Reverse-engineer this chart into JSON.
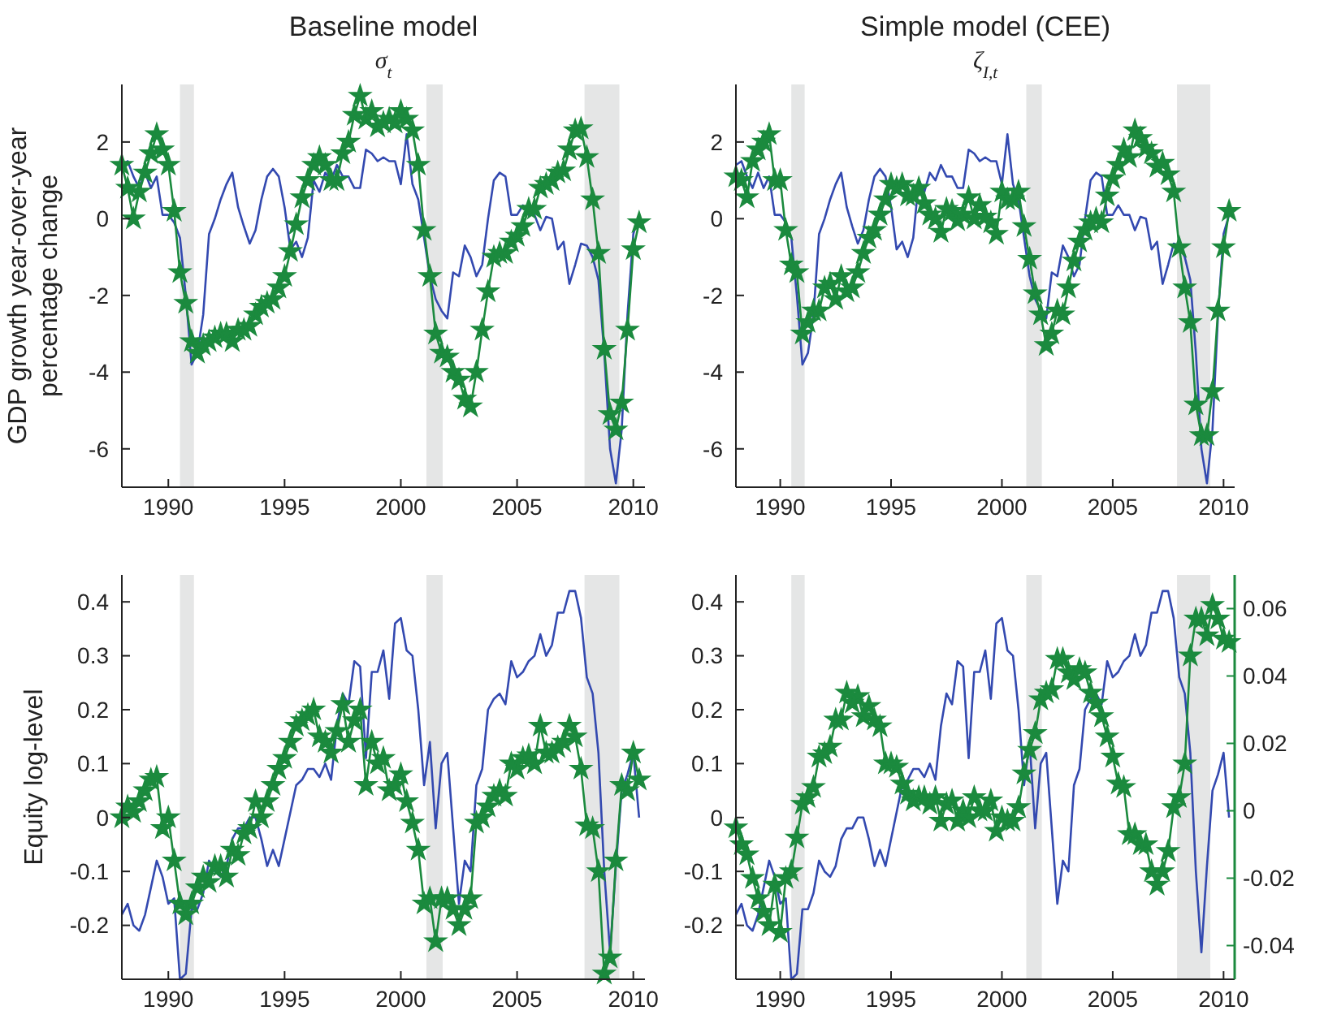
{
  "chart_data": [
    {
      "type": "line",
      "title": "Baseline model",
      "subtitle": "σ$_{t}$",
      "ylabel": "GDP growth year-over-year percentage change",
      "x": [
        1988,
        1988.25,
        1988.5,
        1988.75,
        1989,
        1989.25,
        1989.5,
        1989.75,
        1990,
        1990.25,
        1990.5,
        1990.75,
        1991,
        1991.25,
        1991.5,
        1991.75,
        1992,
        1992.25,
        1992.5,
        1992.75,
        1993,
        1993.25,
        1993.5,
        1993.75,
        1994,
        1994.25,
        1994.5,
        1994.75,
        1995,
        1995.25,
        1995.5,
        1995.75,
        1996,
        1996.25,
        1996.5,
        1996.75,
        1997,
        1997.25,
        1997.5,
        1997.75,
        1998,
        1998.25,
        1998.5,
        1998.75,
        1999,
        1999.25,
        1999.5,
        1999.75,
        2000,
        2000.25,
        2000.5,
        2000.75,
        2001,
        2001.25,
        2001.5,
        2001.75,
        2002,
        2002.25,
        2002.5,
        2002.75,
        2003,
        2003.25,
        2003.5,
        2003.75,
        2004,
        2004.25,
        2004.5,
        2004.75,
        2005,
        2005.25,
        2005.5,
        2005.75,
        2006,
        2006.25,
        2006.5,
        2006.75,
        2007,
        2007.25,
        2007.5,
        2007.75,
        2008,
        2008.25,
        2008.5,
        2008.75,
        2009,
        2009.25,
        2009.5,
        2009.75,
        2010,
        2010.25
      ],
      "series": [
        {
          "color": "#3349b0",
          "marker": "none",
          "values": [
            1.4,
            1.5,
            1.1,
            0.8,
            1.2,
            0.8,
            1.1,
            0.1,
            0.1,
            -0.1,
            -0.5,
            -2.0,
            -3.8,
            -3.5,
            -2.5,
            -0.4,
            0.0,
            0.5,
            0.9,
            1.2,
            0.3,
            -0.2,
            -0.65,
            -0.3,
            0.5,
            1.1,
            1.3,
            1.1,
            0.3,
            -0.8,
            -0.6,
            -1.0,
            -0.5,
            1.0,
            0.7,
            1.2,
            1.0,
            1.4,
            1.1,
            1.1,
            0.8,
            0.8,
            1.8,
            1.7,
            1.5,
            1.6,
            1.5,
            1.5,
            0.9,
            2.2,
            0.9,
            0.5,
            -0.5,
            -1.5,
            -2.1,
            -2.4,
            -2.6,
            -1.4,
            -1.5,
            -0.7,
            -1.0,
            -1.5,
            -1.2,
            0.0,
            1.0,
            1.2,
            1.1,
            0.1,
            0.1,
            0.35,
            0.1,
            0.1,
            -0.3,
            0.05,
            0.0,
            -0.8,
            -0.6,
            -1.7,
            -1.2,
            -0.65,
            -0.7,
            -1.0,
            -1.6,
            -3.5,
            -6.0,
            -6.9,
            -5.5,
            -2.5,
            -0.4,
            0.1
          ]
        },
        {
          "color": "#1b8a3e",
          "marker": "star",
          "values": [
            1.4,
            0.8,
            0.0,
            0.7,
            1.2,
            1.7,
            2.2,
            1.8,
            1.4,
            0.2,
            -1.4,
            -2.2,
            -3.2,
            -3.5,
            -3.3,
            -3.2,
            -3.1,
            -3.0,
            -3.0,
            -3.2,
            -2.9,
            -2.9,
            -2.8,
            -2.5,
            -2.3,
            -2.2,
            -2.1,
            -1.8,
            -1.5,
            -0.85,
            -0.15,
            0.55,
            1.0,
            1.4,
            1.6,
            1.4,
            1.0,
            1.0,
            1.7,
            2.0,
            2.7,
            3.2,
            2.6,
            2.8,
            2.4,
            2.5,
            2.6,
            2.5,
            2.8,
            2.6,
            2.3,
            1.4,
            -0.3,
            -1.5,
            -3.0,
            -3.5,
            -3.6,
            -4.0,
            -4.2,
            -4.7,
            -4.9,
            -4.0,
            -2.9,
            -1.9,
            -1.0,
            -0.9,
            -0.9,
            -0.6,
            -0.45,
            -0.2,
            0.25,
            0.25,
            0.8,
            0.9,
            1.0,
            1.2,
            1.25,
            1.8,
            2.3,
            2.35,
            1.6,
            0.5,
            -0.9,
            -3.4,
            -5.1,
            -5.5,
            -4.8,
            -2.9,
            -0.8,
            -0.1
          ]
        }
      ],
      "bands": [
        {
          "axis": "x",
          "from": 1990.5,
          "to": 1991.1,
          "color": "#e5e6e6"
        },
        {
          "axis": "x",
          "from": 2001.1,
          "to": 2001.8,
          "color": "#e5e6e6"
        },
        {
          "axis": "x",
          "from": 2007.9,
          "to": 2009.4,
          "color": "#e5e6e6"
        }
      ],
      "xlim": [
        1988,
        2010.5
      ],
      "xticks": [
        1990,
        1995,
        2000,
        2005,
        2010
      ],
      "ylim": [
        -7,
        3.5
      ],
      "yticks": [
        -6,
        -4,
        -2,
        0,
        2
      ],
      "grid": false,
      "line_style": "solid"
    },
    {
      "type": "line",
      "title": "Simple model (CEE)",
      "subtitle": "ζ$_{I,t}$",
      "x": [
        1988,
        1988.25,
        1988.5,
        1988.75,
        1989,
        1989.25,
        1989.5,
        1989.75,
        1990,
        1990.25,
        1990.5,
        1990.75,
        1991,
        1991.25,
        1991.5,
        1991.75,
        1992,
        1992.25,
        1992.5,
        1992.75,
        1993,
        1993.25,
        1993.5,
        1993.75,
        1994,
        1994.25,
        1994.5,
        1994.75,
        1995,
        1995.25,
        1995.5,
        1995.75,
        1996,
        1996.25,
        1996.5,
        1996.75,
        1997,
        1997.25,
        1997.5,
        1997.75,
        1998,
        1998.25,
        1998.5,
        1998.75,
        1999,
        1999.25,
        1999.5,
        1999.75,
        2000,
        2000.25,
        2000.5,
        2000.75,
        2001,
        2001.25,
        2001.5,
        2001.75,
        2002,
        2002.25,
        2002.5,
        2002.75,
        2003,
        2003.25,
        2003.5,
        2003.75,
        2004,
        2004.25,
        2004.5,
        2004.75,
        2005,
        2005.25,
        2005.5,
        2005.75,
        2006,
        2006.25,
        2006.5,
        2006.75,
        2007,
        2007.25,
        2007.5,
        2007.75,
        2008,
        2008.25,
        2008.5,
        2008.75,
        2009,
        2009.25,
        2009.5,
        2009.75,
        2010,
        2010.25
      ],
      "series": [
        {
          "color": "#3349b0",
          "marker": "none",
          "values": [
            1.4,
            1.5,
            1.1,
            0.8,
            1.2,
            0.8,
            1.1,
            0.1,
            0.1,
            -0.1,
            -0.5,
            -2.0,
            -3.8,
            -3.5,
            -2.5,
            -0.4,
            0.0,
            0.5,
            0.9,
            1.2,
            0.3,
            -0.2,
            -0.65,
            -0.3,
            0.5,
            1.1,
            1.3,
            1.1,
            0.3,
            -0.8,
            -0.6,
            -1.0,
            -0.5,
            1.0,
            0.7,
            1.2,
            1.0,
            1.4,
            1.1,
            1.1,
            0.8,
            0.8,
            1.8,
            1.7,
            1.5,
            1.6,
            1.5,
            1.5,
            0.9,
            2.2,
            0.9,
            0.5,
            -0.5,
            -1.5,
            -2.1,
            -2.4,
            -2.6,
            -1.4,
            -1.5,
            -0.7,
            -1.0,
            -1.5,
            -1.2,
            0.0,
            1.0,
            1.2,
            1.1,
            0.1,
            0.1,
            0.35,
            0.1,
            0.1,
            -0.3,
            0.05,
            0.0,
            -0.8,
            -0.6,
            -1.7,
            -1.2,
            -0.65,
            -0.7,
            -1.0,
            -1.6,
            -3.5,
            -6.0,
            -6.9,
            -5.5,
            -2.5,
            -0.4,
            0.1
          ]
        },
        {
          "color": "#1b8a3e",
          "marker": "star",
          "values": [
            1.1,
            1.0,
            0.55,
            1.5,
            1.8,
            2.0,
            2.2,
            1.0,
            1.0,
            -0.3,
            -1.2,
            -1.4,
            -3.0,
            -2.7,
            -2.4,
            -2.4,
            -1.8,
            -1.7,
            -2.1,
            -1.5,
            -1.9,
            -1.8,
            -1.4,
            -0.9,
            -0.5,
            -0.3,
            0.1,
            0.5,
            0.9,
            0.8,
            0.9,
            0.6,
            0.6,
            0.8,
            0.4,
            0.1,
            0.0,
            -0.35,
            0.25,
            0.2,
            -0.05,
            0.1,
            0.55,
            0.0,
            0.35,
            0.05,
            -0.1,
            -0.4,
            0.7,
            0.5,
            0.5,
            0.7,
            -0.2,
            -1.05,
            -1.95,
            -2.5,
            -3.3,
            -3.0,
            -2.4,
            -2.5,
            -1.8,
            -1.1,
            -0.6,
            -0.3,
            -0.1,
            0.0,
            -0.1,
            0.6,
            1.05,
            1.4,
            1.8,
            1.6,
            2.3,
            2.1,
            1.85,
            1.7,
            1.35,
            1.45,
            1.15,
            0.7,
            -0.75,
            -1.8,
            -2.7,
            -4.85,
            -5.65,
            -5.65,
            -4.5,
            -2.4,
            -0.75,
            0.2
          ]
        }
      ],
      "bands": [
        {
          "axis": "x",
          "from": 1990.5,
          "to": 1991.1,
          "color": "#e5e6e6"
        },
        {
          "axis": "x",
          "from": 2001.1,
          "to": 2001.8,
          "color": "#e5e6e6"
        },
        {
          "axis": "x",
          "from": 2007.9,
          "to": 2009.4,
          "color": "#e5e6e6"
        }
      ],
      "xlim": [
        1988,
        2010.5
      ],
      "xticks": [
        1990,
        1995,
        2000,
        2005,
        2010
      ],
      "ylim": [
        -7,
        3.5
      ],
      "yticks": [
        -6,
        -4,
        -2,
        0,
        2
      ],
      "grid": false,
      "line_style": "solid"
    },
    {
      "type": "line",
      "ylabel": "Equity log-level",
      "x": [
        1988,
        1988.25,
        1988.5,
        1988.75,
        1989,
        1989.25,
        1989.5,
        1989.75,
        1990,
        1990.25,
        1990.5,
        1990.75,
        1991,
        1991.25,
        1991.5,
        1991.75,
        1992,
        1992.25,
        1992.5,
        1992.75,
        1993,
        1993.25,
        1993.5,
        1993.75,
        1994,
        1994.25,
        1994.5,
        1994.75,
        1995,
        1995.25,
        1995.5,
        1995.75,
        1996,
        1996.25,
        1996.5,
        1996.75,
        1997,
        1997.25,
        1997.5,
        1997.75,
        1998,
        1998.25,
        1998.5,
        1998.75,
        1999,
        1999.25,
        1999.5,
        1999.75,
        2000,
        2000.25,
        2000.5,
        2000.75,
        2001,
        2001.25,
        2001.5,
        2001.75,
        2002,
        2002.25,
        2002.5,
        2002.75,
        2003,
        2003.25,
        2003.5,
        2003.75,
        2004,
        2004.25,
        2004.5,
        2004.75,
        2005,
        2005.25,
        2005.5,
        2005.75,
        2006,
        2006.25,
        2006.5,
        2006.75,
        2007,
        2007.25,
        2007.5,
        2007.75,
        2008,
        2008.25,
        2008.5,
        2008.75,
        2009,
        2009.25,
        2009.5,
        2009.75,
        2010,
        2010.25
      ],
      "series": [
        {
          "color": "#3349b0",
          "marker": "none",
          "values": [
            -0.18,
            -0.16,
            -0.2,
            -0.21,
            -0.18,
            -0.13,
            -0.08,
            -0.11,
            -0.16,
            -0.15,
            -0.3,
            -0.29,
            -0.17,
            -0.17,
            -0.14,
            -0.08,
            -0.1,
            -0.11,
            -0.09,
            -0.04,
            -0.02,
            -0.02,
            0.0,
            0.0,
            -0.04,
            -0.09,
            -0.06,
            -0.09,
            -0.04,
            0.01,
            0.06,
            0.07,
            0.09,
            0.09,
            0.075,
            0.1,
            0.07,
            0.17,
            0.23,
            0.21,
            0.29,
            0.28,
            0.11,
            0.27,
            0.27,
            0.31,
            0.22,
            0.36,
            0.37,
            0.31,
            0.3,
            0.2,
            0.06,
            0.14,
            -0.02,
            0.1,
            0.12,
            -0.02,
            -0.16,
            -0.08,
            -0.1,
            0.06,
            0.09,
            0.2,
            0.22,
            0.23,
            0.21,
            0.29,
            0.26,
            0.27,
            0.29,
            0.3,
            0.34,
            0.3,
            0.32,
            0.38,
            0.38,
            0.42,
            0.42,
            0.37,
            0.26,
            0.23,
            0.12,
            -0.1,
            -0.25,
            -0.09,
            0.05,
            0.08,
            0.12,
            0.0
          ]
        },
        {
          "color": "#1b8a3e",
          "marker": "star",
          "values": [
            0.0,
            0.02,
            0.01,
            0.03,
            0.05,
            0.07,
            0.075,
            -0.02,
            0.0,
            -0.08,
            -0.16,
            -0.18,
            -0.16,
            -0.13,
            -0.11,
            -0.12,
            -0.09,
            -0.09,
            -0.11,
            -0.06,
            -0.07,
            -0.03,
            -0.02,
            0.03,
            0.0,
            0.03,
            0.06,
            0.09,
            0.11,
            0.14,
            0.17,
            0.18,
            0.19,
            0.2,
            0.15,
            0.14,
            0.12,
            0.16,
            0.21,
            0.14,
            0.18,
            0.2,
            0.06,
            0.14,
            0.1,
            0.11,
            0.05,
            0.06,
            0.08,
            0.03,
            -0.01,
            -0.06,
            -0.16,
            -0.15,
            -0.23,
            -0.15,
            -0.15,
            -0.17,
            -0.2,
            -0.17,
            -0.15,
            -0.01,
            0.0,
            0.02,
            0.04,
            0.05,
            0.04,
            0.1,
            0.09,
            0.11,
            0.115,
            0.1,
            0.17,
            0.12,
            0.12,
            0.13,
            0.14,
            0.17,
            0.15,
            0.09,
            -0.015,
            -0.02,
            -0.1,
            -0.29,
            -0.26,
            -0.08,
            0.06,
            0.05,
            0.12,
            0.07
          ]
        }
      ],
      "bands": [
        {
          "axis": "x",
          "from": 1990.5,
          "to": 1991.1,
          "color": "#e5e6e6"
        },
        {
          "axis": "x",
          "from": 2001.1,
          "to": 2001.8,
          "color": "#e5e6e6"
        },
        {
          "axis": "x",
          "from": 2007.9,
          "to": 2009.4,
          "color": "#e5e6e6"
        }
      ],
      "xlim": [
        1988,
        2010.5
      ],
      "xticks": [
        1990,
        1995,
        2000,
        2005,
        2010
      ],
      "ylim": [
        -0.3,
        0.45
      ],
      "yticks": [
        -0.2,
        -0.1,
        0,
        0.1,
        0.2,
        0.3,
        0.4
      ],
      "grid": false,
      "line_style": "solid"
    },
    {
      "type": "line",
      "x": [
        1988,
        1988.25,
        1988.5,
        1988.75,
        1989,
        1989.25,
        1989.5,
        1989.75,
        1990,
        1990.25,
        1990.5,
        1990.75,
        1991,
        1991.25,
        1991.5,
        1991.75,
        1992,
        1992.25,
        1992.5,
        1992.75,
        1993,
        1993.25,
        1993.5,
        1993.75,
        1994,
        1994.25,
        1994.5,
        1994.75,
        1995,
        1995.25,
        1995.5,
        1995.75,
        1996,
        1996.25,
        1996.5,
        1996.75,
        1997,
        1997.25,
        1997.5,
        1997.75,
        1998,
        1998.25,
        1998.5,
        1998.75,
        1999,
        1999.25,
        1999.5,
        1999.75,
        2000,
        2000.25,
        2000.5,
        2000.75,
        2001,
        2001.25,
        2001.5,
        2001.75,
        2002,
        2002.25,
        2002.5,
        2002.75,
        2003,
        2003.25,
        2003.5,
        2003.75,
        2004,
        2004.25,
        2004.5,
        2004.75,
        2005,
        2005.25,
        2005.5,
        2005.75,
        2006,
        2006.25,
        2006.5,
        2006.75,
        2007,
        2007.25,
        2007.5,
        2007.75,
        2008,
        2008.25,
        2008.5,
        2008.75,
        2009,
        2009.25,
        2009.5,
        2009.75,
        2010,
        2010.25
      ],
      "series": [
        {
          "color": "#3349b0",
          "marker": "none",
          "values": [
            -0.18,
            -0.16,
            -0.2,
            -0.21,
            -0.18,
            -0.13,
            -0.08,
            -0.11,
            -0.16,
            -0.15,
            -0.3,
            -0.29,
            -0.17,
            -0.17,
            -0.14,
            -0.08,
            -0.1,
            -0.11,
            -0.09,
            -0.04,
            -0.02,
            -0.02,
            0.0,
            0.0,
            -0.04,
            -0.09,
            -0.06,
            -0.09,
            -0.04,
            0.01,
            0.06,
            0.07,
            0.09,
            0.09,
            0.075,
            0.1,
            0.07,
            0.17,
            0.23,
            0.21,
            0.29,
            0.28,
            0.11,
            0.27,
            0.27,
            0.31,
            0.22,
            0.36,
            0.37,
            0.31,
            0.3,
            0.2,
            0.06,
            0.14,
            -0.02,
            0.1,
            0.12,
            -0.02,
            -0.16,
            -0.08,
            -0.1,
            0.06,
            0.09,
            0.2,
            0.22,
            0.23,
            0.21,
            0.29,
            0.26,
            0.27,
            0.29,
            0.3,
            0.34,
            0.3,
            0.32,
            0.38,
            0.38,
            0.42,
            0.42,
            0.37,
            0.26,
            0.23,
            0.12,
            -0.1,
            -0.25,
            -0.09,
            0.05,
            0.08,
            0.12,
            0.0
          ]
        },
        {
          "color": "#1b8a3e",
          "marker": "star",
          "axis": "y2",
          "values": [
            -0.005,
            -0.01,
            -0.013,
            -0.02,
            -0.026,
            -0.03,
            -0.034,
            -0.022,
            -0.036,
            -0.02,
            -0.018,
            -0.008,
            0.002,
            0.004,
            0.007,
            0.016,
            0.017,
            0.019,
            0.027,
            0.027,
            0.035,
            0.032,
            0.034,
            0.028,
            0.031,
            0.027,
            0.025,
            0.014,
            0.014,
            0.013,
            0.008,
            0.005,
            0.003,
            0.004,
            0.004,
            0.002,
            0.004,
            -0.003,
            0.002,
            0.003,
            -0.003,
            0.0,
            -0.002,
            0.004,
            0.0,
            0.0,
            0.003,
            -0.006,
            -0.002,
            -0.003,
            -0.003,
            0.001,
            0.011,
            0.018,
            0.023,
            0.033,
            0.035,
            0.036,
            0.045,
            0.045,
            0.041,
            0.039,
            0.042,
            0.041,
            0.035,
            0.032,
            0.028,
            0.022,
            0.016,
            0.008,
            0.007,
            -0.007,
            -0.007,
            -0.01,
            -0.01,
            -0.018,
            -0.022,
            -0.018,
            -0.012,
            0.001,
            0.004,
            0.014,
            0.046,
            0.057,
            0.057,
            0.052,
            0.061,
            0.057,
            0.051,
            0.05
          ]
        }
      ],
      "bands": [
        {
          "axis": "x",
          "from": 1990.5,
          "to": 1991.1,
          "color": "#e5e6e6"
        },
        {
          "axis": "x",
          "from": 2001.1,
          "to": 2001.8,
          "color": "#e5e6e6"
        },
        {
          "axis": "x",
          "from": 2007.9,
          "to": 2009.4,
          "color": "#e5e6e6"
        }
      ],
      "xlim": [
        1988,
        2010.5
      ],
      "xticks": [
        1990,
        1995,
        2000,
        2005,
        2010
      ],
      "ylim": [
        -0.3,
        0.45
      ],
      "yticks": [
        -0.2,
        -0.1,
        0,
        0.1,
        0.2,
        0.3,
        0.4
      ],
      "y2lim": [
        -0.05,
        0.07
      ],
      "y2ticks": [
        -0.04,
        -0.02,
        0,
        0.02,
        0.04,
        0.06
      ],
      "grid": false,
      "line_style": "solid"
    }
  ]
}
